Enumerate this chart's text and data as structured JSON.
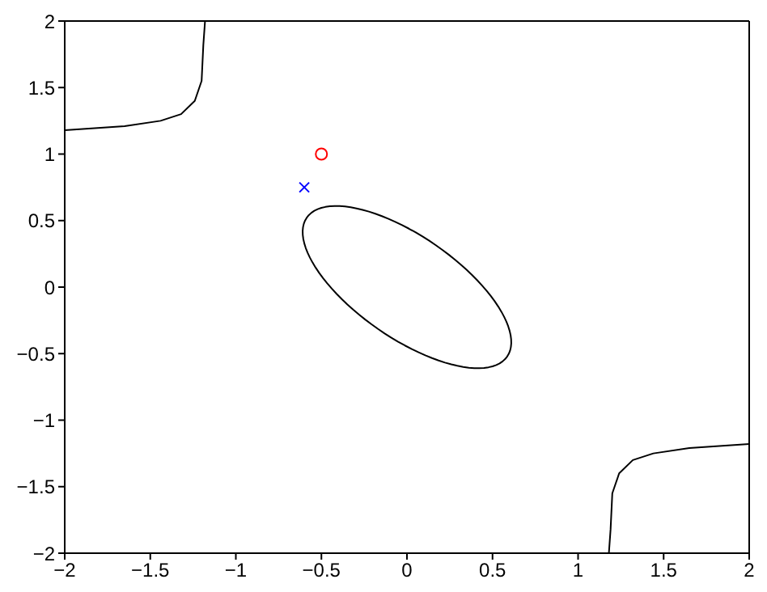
{
  "chart_data": {
    "type": "line",
    "xlim": [
      -2,
      2
    ],
    "ylim": [
      -2,
      2
    ],
    "xticks": [
      -2,
      -1.5,
      -1,
      -0.5,
      0,
      0.5,
      1,
      1.5,
      2
    ],
    "yticks": [
      -2,
      -1.5,
      -1,
      -0.5,
      0,
      0.5,
      1,
      1.5,
      2
    ],
    "grid": false,
    "legend": false,
    "series": [
      {
        "color": "#000000",
        "x": [
          -2,
          -1.65,
          -1.44,
          -1.32,
          -1.24,
          -1.2,
          -1.19,
          -1.18
        ],
        "values": [
          1.18,
          1.21,
          1.25,
          1.3,
          1.4,
          1.55,
          1.82,
          2
        ]
      },
      {
        "color": "#000000",
        "x": [
          1.18,
          1.19,
          1.2,
          1.24,
          1.32,
          1.44,
          1.65,
          2
        ],
        "values": [
          -2,
          -1.82,
          -1.55,
          -1.4,
          -1.3,
          -1.25,
          -1.21,
          -1.18
        ]
      },
      {
        "type": "scatter",
        "color": "#ff0000",
        "marker": "circle",
        "x": [
          -0.5
        ],
        "values": [
          1
        ]
      },
      {
        "type": "scatter",
        "color": "#0000ff",
        "marker": "cross",
        "x": [
          -0.6
        ],
        "values": [
          0.75
        ]
      }
    ]
  }
}
